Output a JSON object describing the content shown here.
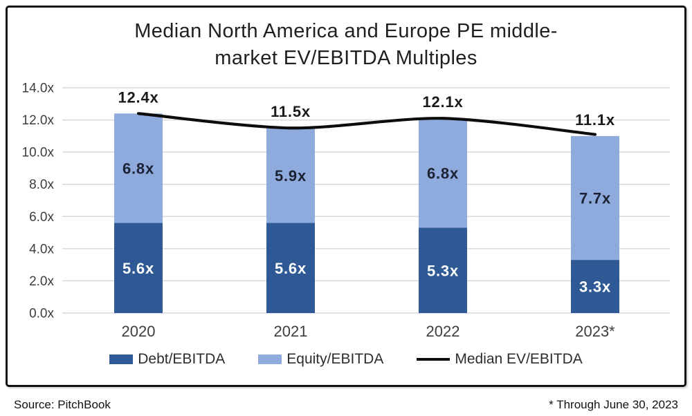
{
  "header": {
    "title_line1": "Median North America and Europe PE middle-",
    "title_line2": "market EV/EBITDA Multiples"
  },
  "chart_data": {
    "type": "bar",
    "subtype": "stacked-column-with-line-overlay",
    "title": "Median North America and Europe PE middle-market EV/EBITDA Multiples",
    "categories": [
      "2020",
      "2021",
      "2022",
      "2023*"
    ],
    "series": [
      {
        "name": "Debt/EBITDA",
        "role": "bar",
        "color": "#2E5994",
        "values": [
          5.6,
          5.6,
          5.3,
          3.3
        ]
      },
      {
        "name": "Equity/EBITDA",
        "role": "bar",
        "color": "#8FAADC",
        "values": [
          6.8,
          5.9,
          6.8,
          7.7
        ]
      },
      {
        "name": "Median EV/EBITDA",
        "role": "line",
        "color": "#0D0D0D",
        "values": [
          12.4,
          11.5,
          12.1,
          11.1
        ]
      }
    ],
    "value_suffix": "x",
    "ylim": [
      0,
      14
    ],
    "ytick_step": 2,
    "ytick_labels": [
      "0.0x",
      "2.0x",
      "4.0x",
      "6.0x",
      "8.0x",
      "10.0x",
      "12.0x",
      "14.0x"
    ],
    "grid": "horizontal",
    "legend_position": "bottom",
    "xlabel": "",
    "ylabel": ""
  },
  "legend": {
    "items": [
      {
        "label": "Debt/EBITDA",
        "swatch_color": "#2E5994",
        "swatch_type": "box"
      },
      {
        "label": "Equity/EBITDA",
        "swatch_color": "#8FAADC",
        "swatch_type": "box"
      },
      {
        "label": "Median EV/EBITDA",
        "swatch_color": "#0D0D0D",
        "swatch_type": "line"
      }
    ]
  },
  "footer": {
    "source": "Source: PitchBook",
    "note": "* Through June 30, 2023"
  },
  "colors": {
    "debt_bar": "#2E5994",
    "equity_bar": "#8FAADC",
    "median_line": "#0D0D0D",
    "gridline": "#D9D9D9",
    "axis_text": "#3D3D3D",
    "debt_label_text": "#FFFFFF",
    "equity_label_text": "#1C2233",
    "total_label_text": "#1A1A1A",
    "frame_border": "#111111"
  }
}
